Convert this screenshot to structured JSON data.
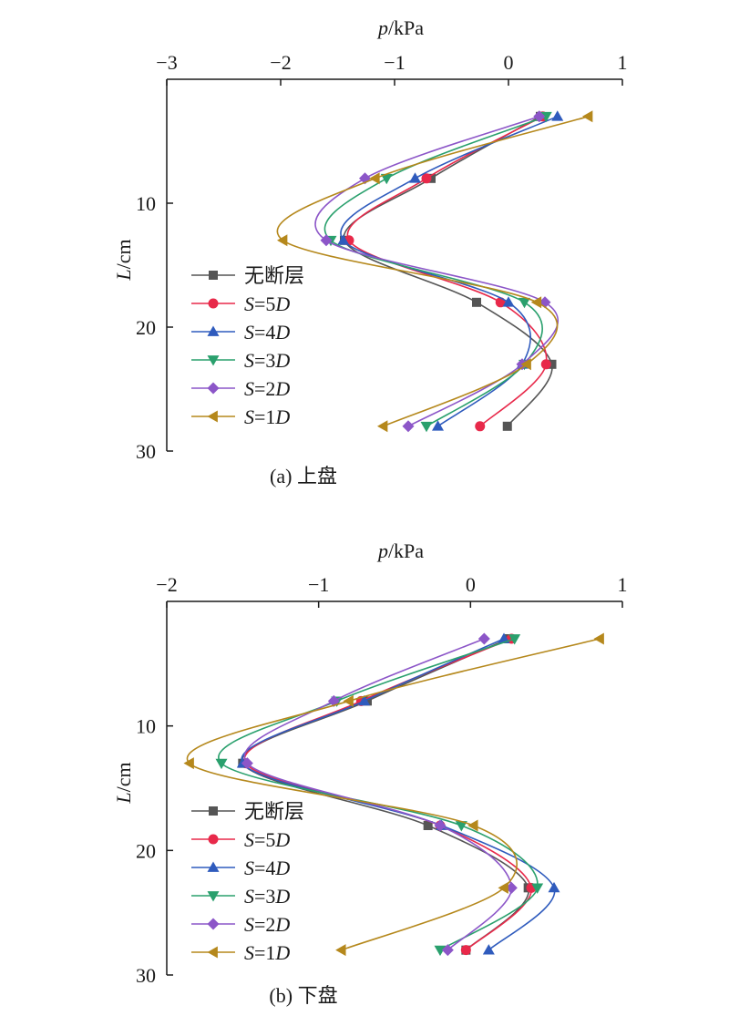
{
  "chart_data": [
    {
      "type": "line",
      "caption": "(a) 上盘",
      "xlabel_var": "p",
      "xlabel_unit": "/kPa",
      "ylabel_var": "L",
      "ylabel_unit": "/cm",
      "xlim": [
        -3,
        1
      ],
      "ylim": [
        30,
        0
      ],
      "xticks": [
        "−3",
        "−2",
        "−1",
        "0",
        "1"
      ],
      "xtick_values": [
        -3,
        -2,
        -1,
        0,
        1
      ],
      "yticks": [
        "10",
        "20",
        "30"
      ],
      "ytick_values": [
        10,
        20,
        30
      ],
      "legend_position": "center-left",
      "y": [
        3,
        8,
        13,
        18,
        23,
        28
      ],
      "series": [
        {
          "name": "无断层",
          "color": "#555555",
          "marker": "square",
          "x": [
            0.28,
            -0.68,
            -1.44,
            -0.28,
            0.38,
            -0.01
          ]
        },
        {
          "name": "S=5D",
          "name_var": "S",
          "name_eq": "=5",
          "name_sub": "D",
          "color": "#e8294a",
          "marker": "circle",
          "x": [
            0.3,
            -0.72,
            -1.4,
            -0.07,
            0.33,
            -0.25
          ]
        },
        {
          "name": "S=4D",
          "name_var": "S",
          "name_eq": "=4",
          "name_sub": "D",
          "color": "#2f5bbd",
          "marker": "triangle-up",
          "x": [
            0.43,
            -0.82,
            -1.45,
            0.0,
            0.12,
            -0.62
          ]
        },
        {
          "name": "S=3D",
          "name_var": "S",
          "name_eq": "=3",
          "name_sub": "D",
          "color": "#2aa06d",
          "marker": "triangle-down",
          "x": [
            0.33,
            -1.07,
            -1.56,
            0.14,
            0.14,
            -0.72
          ]
        },
        {
          "name": "S=2D",
          "name_var": "S",
          "name_eq": "=2",
          "name_sub": "D",
          "color": "#8c56c8",
          "marker": "diamond",
          "x": [
            0.27,
            -1.26,
            -1.6,
            0.32,
            0.12,
            -0.88
          ]
        },
        {
          "name": "S=1D",
          "name_var": "S",
          "name_eq": "=1",
          "name_sub": "D",
          "color": "#b5881c",
          "marker": "triangle-left",
          "x": [
            0.7,
            -1.17,
            -1.98,
            0.25,
            0.16,
            -1.1
          ]
        }
      ]
    },
    {
      "type": "line",
      "caption": "(b) 下盘",
      "xlabel_var": "p",
      "xlabel_unit": "/kPa",
      "ylabel_var": "L",
      "ylabel_unit": "/cm",
      "xlim": [
        -2,
        1
      ],
      "ylim": [
        30,
        0
      ],
      "xticks": [
        "−2",
        "−1",
        "0",
        "1"
      ],
      "xtick_values": [
        -2,
        -1,
        0,
        1
      ],
      "yticks": [
        "10",
        "20",
        "30"
      ],
      "ytick_values": [
        10,
        20,
        30
      ],
      "legend_position": "bottom-left",
      "y": [
        3,
        8,
        13,
        18,
        23,
        28
      ],
      "series": [
        {
          "name": "无断层",
          "color": "#555555",
          "marker": "square",
          "x": [
            0.25,
            -0.68,
            -1.5,
            -0.28,
            0.38,
            -0.03
          ]
        },
        {
          "name": "S=5D",
          "name_var": "S",
          "name_eq": "=5",
          "name_sub": "D",
          "color": "#e8294a",
          "marker": "circle",
          "x": [
            0.27,
            -0.72,
            -1.48,
            -0.2,
            0.4,
            -0.03
          ]
        },
        {
          "name": "S=4D",
          "name_var": "S",
          "name_eq": "=4",
          "name_sub": "D",
          "color": "#2f5bbd",
          "marker": "triangle-up",
          "x": [
            0.22,
            -0.7,
            -1.5,
            -0.19,
            0.55,
            0.12
          ]
        },
        {
          "name": "S=3D",
          "name_var": "S",
          "name_eq": "=3",
          "name_sub": "D",
          "color": "#2aa06d",
          "marker": "triangle-down",
          "x": [
            0.29,
            -0.88,
            -1.64,
            -0.06,
            0.44,
            -0.2
          ]
        },
        {
          "name": "S=2D",
          "name_var": "S",
          "name_eq": "=2",
          "name_sub": "D",
          "color": "#8c56c8",
          "marker": "diamond",
          "x": [
            0.09,
            -0.9,
            -1.47,
            -0.2,
            0.27,
            -0.15
          ]
        },
        {
          "name": "S=1D",
          "name_var": "S",
          "name_eq": "=1",
          "name_sub": "D",
          "color": "#b5881c",
          "marker": "triangle-left",
          "x": [
            0.85,
            -0.8,
            -1.85,
            0.02,
            0.22,
            -0.85
          ]
        }
      ]
    }
  ]
}
